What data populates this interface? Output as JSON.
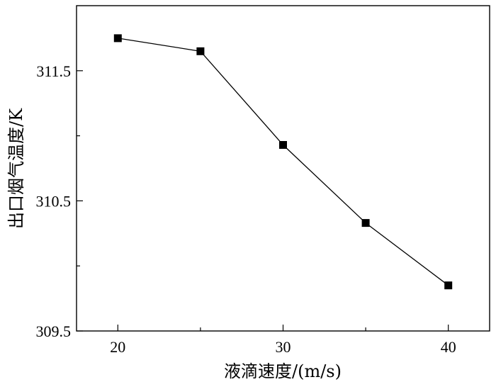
{
  "chart_data": {
    "type": "line",
    "title": "",
    "xlabel": "液滴速度/(m/s)",
    "ylabel": "出口烟气温度/K",
    "xlim": [
      17.5,
      42.5
    ],
    "ylim": [
      309.5,
      312.0
    ],
    "xticks": [
      20,
      30,
      40
    ],
    "xtick_labels": [
      "20",
      "30",
      "40"
    ],
    "xticks_minor": [
      25,
      35
    ],
    "yticks": [
      309.5,
      310.5,
      311.5
    ],
    "ytick_labels": [
      "309.5",
      "310.5",
      "311.5"
    ],
    "yticks_minor": [
      310.0,
      311.0
    ],
    "grid": false,
    "series": [
      {
        "marker": "square",
        "color": "#000000",
        "x": [
          20,
          25,
          30,
          35,
          40
        ],
        "y": [
          311.75,
          311.65,
          310.93,
          310.33,
          309.85
        ]
      }
    ]
  }
}
